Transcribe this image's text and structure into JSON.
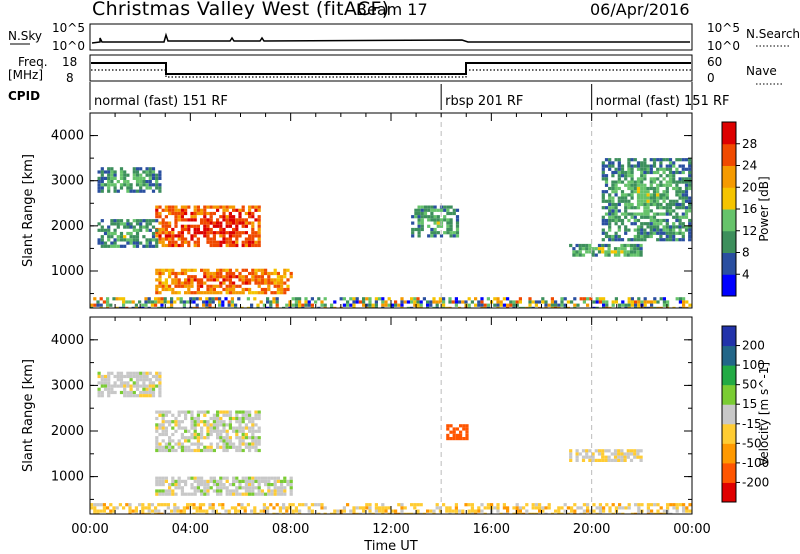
{
  "title": "Christmas Valley West (fitACF)",
  "beam": "Beam 17",
  "date": "06/Apr/2016",
  "top_panels": {
    "nsky": {
      "left_label": "N.Sky",
      "left_ticks": [
        "10^5",
        "10^0"
      ],
      "right_label": "N.Search",
      "right_ticks": [
        "10^5",
        "10^0"
      ]
    },
    "freq": {
      "left_label_1": "Freq.",
      "left_label_2": "[MHz]",
      "left_ticks": [
        "18",
        "8"
      ],
      "right_label": "Nave",
      "right_ticks": [
        "60",
        "0"
      ]
    },
    "cpid": {
      "label": "CPID",
      "segments": [
        {
          "text": "normal (fast) 151 RF",
          "start_hour": 0,
          "end_hour": 14
        },
        {
          "text": "rbsp 201 RF",
          "start_hour": 14,
          "end_hour": 20
        },
        {
          "text": "normal (fast) 151 RF",
          "start_hour": 20,
          "end_hour": 24
        }
      ]
    }
  },
  "chart_data": [
    {
      "type": "heatmap",
      "title": "Power",
      "xlabel": "Time UT",
      "ylabel": "Slant Range [km]",
      "colorbar_label": "Power [dB]",
      "colorbar_ticks": [
        28,
        24,
        20,
        16,
        12,
        8,
        4
      ],
      "colorbar_range": [
        0,
        32
      ],
      "xlim": [
        0,
        24
      ],
      "ylim": [
        180,
        4500
      ],
      "xticks": [
        "00:00",
        "04:00",
        "08:00",
        "12:00",
        "16:00",
        "20:00",
        "00:00"
      ],
      "yticks": [
        1000,
        2000,
        3000,
        4000
      ],
      "regions": [
        {
          "t": [
            2.6,
            6.8
          ],
          "r": [
            1550,
            2450
          ],
          "value": 24
        },
        {
          "t": [
            2.6,
            8.0
          ],
          "r": [
            550,
            1050
          ],
          "value": 22
        },
        {
          "t": [
            0.3,
            2.8
          ],
          "r": [
            2750,
            3300
          ],
          "value": 8
        },
        {
          "t": [
            0.3,
            2.6
          ],
          "r": [
            1550,
            2150
          ],
          "value": 8
        },
        {
          "t": [
            19.1,
            22.0
          ],
          "r": [
            1380,
            1600
          ],
          "value": 10
        },
        {
          "t": [
            12.8,
            14.7
          ],
          "r": [
            1750,
            2450
          ],
          "value": 8
        },
        {
          "t": [
            20.4,
            24.0
          ],
          "r": [
            1700,
            3500
          ],
          "value": 8
        },
        {
          "t": [
            0.0,
            24.0
          ],
          "r": [
            190,
            420
          ],
          "value": 14
        }
      ]
    },
    {
      "type": "heatmap",
      "title": "Velocity",
      "xlabel": "Time UT",
      "ylabel": "Slant Range [km]",
      "colorbar_label": "Velocity [m s^-1]",
      "colorbar_ticks": [
        200,
        100,
        50,
        15,
        -15,
        -50,
        -100,
        -200
      ],
      "colorbar_range": [
        -250,
        250
      ],
      "xlim": [
        0,
        24
      ],
      "ylim": [
        180,
        4500
      ],
      "xticks": [
        "00:00",
        "04:00",
        "08:00",
        "12:00",
        "16:00",
        "20:00",
        "00:00"
      ],
      "yticks": [
        1000,
        2000,
        3000,
        4000
      ],
      "regions": [
        {
          "t": [
            2.6,
            8.0
          ],
          "r": [
            600,
            1000
          ],
          "value": 0
        },
        {
          "t": [
            2.6,
            6.8
          ],
          "r": [
            1550,
            2450
          ],
          "value": 0
        },
        {
          "t": [
            0.3,
            2.8
          ],
          "r": [
            2750,
            3300
          ],
          "value": 0
        },
        {
          "t": [
            14.2,
            15.0
          ],
          "r": [
            1850,
            2150
          ],
          "value": -150
        },
        {
          "t": [
            19.1,
            22.0
          ],
          "r": [
            1380,
            1600
          ],
          "value": -10
        },
        {
          "t": [
            0.0,
            24.0
          ],
          "r": [
            190,
            420
          ],
          "value": -30
        }
      ]
    }
  ]
}
